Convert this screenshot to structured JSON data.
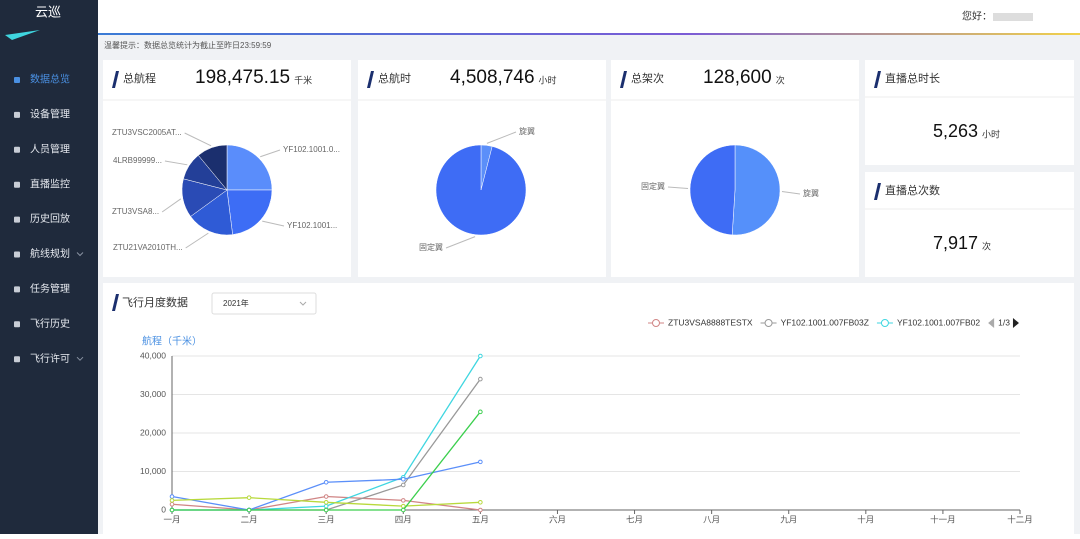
{
  "sidebar": {
    "logo": "云巡",
    "menu": [
      "数据总览",
      "设备管理",
      "人员管理",
      "直播监控",
      "历史回放",
      "航线规划",
      "任务管理",
      "飞行历史",
      "飞行许可"
    ]
  },
  "header": {
    "greeting": "您好："
  },
  "notice": "温馨提示：数据总览统计为截止至昨日23:59:59",
  "stats": [
    {
      "title": "总航程",
      "value": "198,475.15",
      "unit": "千米",
      "chart": {
        "type": "pie",
        "categories": [
          "YF102.1001.0...",
          "YF102.1001...",
          "ZTU21VA2010TH...",
          "ZTU3VSA8...",
          "4LRB99999...",
          "ZTU3VSC2005AT..."
        ],
        "values": [
          25,
          23,
          17,
          14,
          10,
          11
        ],
        "colors": [
          "#5a8dfb",
          "#3d6df5",
          "#2f5bd6",
          "#2a4bb5",
          "#233f98",
          "#1b2f6e"
        ]
      }
    },
    {
      "title": "总航时",
      "value": "4,508,746",
      "unit": "小时",
      "chart": {
        "type": "pie",
        "categories": [
          "旋翼",
          "固定翼"
        ],
        "values": [
          4,
          96
        ],
        "colors": [
          "#5b8ff9",
          "#3e6cf5"
        ]
      }
    },
    {
      "title": "总架次",
      "value": "128,600",
      "unit": "次",
      "chart": {
        "type": "pie",
        "categories": [
          "旋翼",
          "固定翼"
        ],
        "values": [
          51,
          49
        ],
        "colors": [
          "#5590fa",
          "#3e6cf5"
        ]
      }
    }
  ],
  "live": [
    {
      "title": "直播总时长",
      "value": "5,263",
      "unit": "小时"
    },
    {
      "title": "直播总次数",
      "value": "7,917",
      "unit": "次"
    }
  ],
  "monthly": {
    "title": "飞行月度数据",
    "year": "2021年",
    "pager": "1/3",
    "chart_data": {
      "type": "line",
      "y_label": "航程（千米）",
      "categories": [
        "一月",
        "二月",
        "三月",
        "四月",
        "五月",
        "六月",
        "七月",
        "八月",
        "九月",
        "十月",
        "十一月",
        "十二月"
      ],
      "ylim": [
        0,
        40000
      ],
      "yticks": [
        {
          "value": 0,
          "label": "0"
        },
        {
          "value": 10000,
          "label": "10,000"
        },
        {
          "value": 20000,
          "label": "20,000"
        },
        {
          "value": 30000,
          "label": "30,000"
        },
        {
          "value": 40000,
          "label": "40,000"
        }
      ],
      "series": [
        {
          "name": "ZTU3VSA8888TESTX",
          "color": "#d08585",
          "values": [
            1500,
            0,
            3500,
            2500,
            0,
            null,
            null,
            null,
            null,
            null,
            null,
            null
          ]
        },
        {
          "name": "YF102.1001.007FB03Z",
          "color": "#999999",
          "values": [
            0,
            0,
            0,
            6500,
            34000,
            null,
            null,
            null,
            null,
            null,
            null,
            null
          ]
        },
        {
          "name": "YF102.1001.007FB02",
          "color": "#3fd6e0",
          "values": [
            0,
            0,
            1000,
            8500,
            40000,
            null,
            null,
            null,
            null,
            null,
            null,
            null
          ]
        },
        {
          "color": "#5b8ff9",
          "values": [
            3500,
            0,
            7200,
            8000,
            12500,
            null,
            null,
            null,
            null,
            null,
            null,
            null
          ]
        },
        {
          "color": "#b8d93c",
          "values": [
            2500,
            3200,
            2000,
            1000,
            2000,
            null,
            null,
            null,
            null,
            null,
            null,
            null
          ]
        },
        {
          "color": "#3ccf4e",
          "values": [
            0,
            0,
            0,
            0,
            25500,
            null,
            null,
            null,
            null,
            null,
            null,
            null
          ]
        }
      ]
    }
  }
}
